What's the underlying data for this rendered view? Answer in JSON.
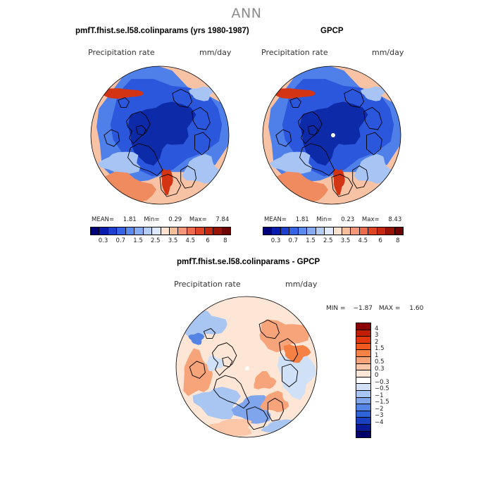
{
  "title": "ANN",
  "panels": [
    {
      "title": "pmfT.fhist.se.l58.colinparams (yrs 1980-1987)",
      "variable": "Precipitation rate",
      "units": "mm/day",
      "stats": {
        "mean_label": "MEAN=",
        "mean": "1.81",
        "min_label": "Min=",
        "min": "0.29",
        "max_label": "Max=",
        "max": "7.84"
      }
    },
    {
      "title": "GPCP",
      "variable": "Precipitation rate",
      "units": "mm/day",
      "stats": {
        "mean_label": "MEAN=",
        "mean": "1.81",
        "min_label": "Min=",
        "min": "0.23",
        "max_label": "Max=",
        "max": "8.43"
      }
    },
    {
      "title": "pmfT.fhist.se.l58.colinparams - GPCP",
      "variable": "Precipitation rate",
      "units": "mm/day",
      "stats": {
        "min_label": "MIN =",
        "min": "−1.87",
        "max_label": "MAX =",
        "max": "1.60"
      }
    }
  ],
  "precip_colorbar": {
    "tick_labels": [
      "0.3",
      "0.7",
      "1.5",
      "2.5",
      "3.5",
      "4.5",
      "6",
      "8"
    ],
    "colors": [
      "#00007a",
      "#0a1cb0",
      "#1f3fd1",
      "#3764e6",
      "#5b8af0",
      "#86abf3",
      "#b5cdf6",
      "#dfe9fb",
      "#fde2cf",
      "#f8bd9b",
      "#f4977a",
      "#ee6c4d",
      "#e04424",
      "#c52811",
      "#9a1204",
      "#6e0000"
    ]
  },
  "diff_colorbar": {
    "tick_labels": [
      "4",
      "3",
      "2",
      "1.5",
      "1",
      "0.5",
      "0.3",
      "0",
      "−0.3",
      "−0.5",
      "−1",
      "−1.5",
      "−2",
      "−3",
      "−4"
    ],
    "colors": [
      "#8b0000",
      "#c21e05",
      "#e2380f",
      "#f05a1e",
      "#f58145",
      "#f8a47a",
      "#fbc7a8",
      "#fde6d6",
      "#ffffff",
      "#cfe0f7",
      "#a9c5f2",
      "#7fa5ec",
      "#5485e4",
      "#2f63d8",
      "#1a3fbf",
      "#0a1a94",
      "#00006a"
    ]
  },
  "map_colors": {
    "ocean_blue": "#2a57dc",
    "deep_blue": "#0d2aa8",
    "mid_blue": "#4f7fe8",
    "light_blue": "#a8c4f4",
    "peach": "#f8c3a5",
    "orange": "#f08a5f",
    "red": "#d23414",
    "white": "#ffffff"
  }
}
